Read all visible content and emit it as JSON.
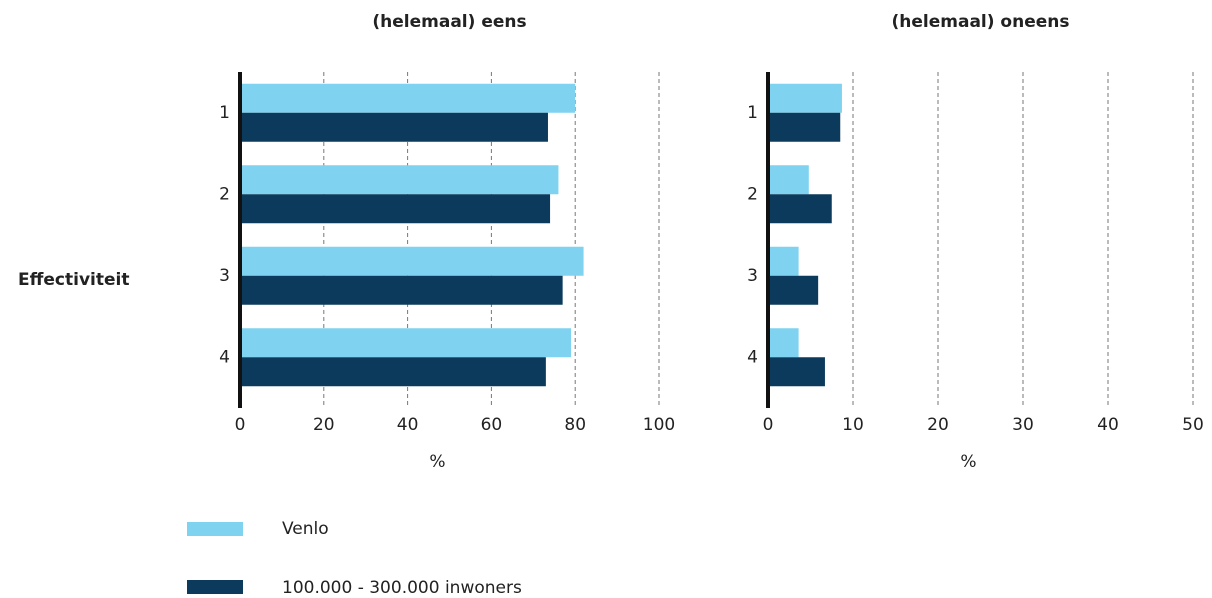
{
  "chart_data": [
    {
      "type": "hbar",
      "title": "(helemaal) eens",
      "x_label": "%",
      "y_label": "Effectiviteit",
      "categories": [
        "1",
        "2",
        "3",
        "4"
      ],
      "series": [
        {
          "name": "Venlo",
          "color": "#7fd3f0",
          "values": [
            80,
            76,
            82,
            79
          ]
        },
        {
          "name": "100.000 - 300.000 inwoners",
          "color": "#0b3a5c",
          "values": [
            73.5,
            74,
            77,
            73
          ]
        }
      ],
      "xlim": [
        0,
        100
      ],
      "xticks": [
        0,
        20,
        40,
        60,
        80,
        100
      ],
      "grid": true
    },
    {
      "type": "hbar",
      "title": "(helemaal) oneens",
      "x_label": "%",
      "categories": [
        "1",
        "2",
        "3",
        "4"
      ],
      "series": [
        {
          "name": "Venlo",
          "color": "#7fd3f0",
          "values": [
            8.7,
            4.8,
            3.6,
            3.6
          ]
        },
        {
          "name": "100.000 - 300.000 inwoners",
          "color": "#0b3a5c",
          "values": [
            8.5,
            7.5,
            5.9,
            6.7
          ]
        }
      ],
      "xlim": [
        0,
        50
      ],
      "xticks": [
        0,
        10,
        20,
        30,
        40,
        50
      ],
      "grid": true
    }
  ]
}
